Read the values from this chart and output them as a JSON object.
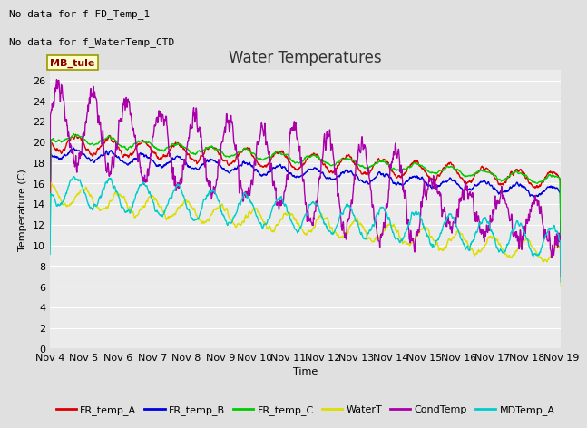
{
  "title": "Water Temperatures",
  "xlabel": "Time",
  "ylabel": "Temperature (C)",
  "text_lines": [
    "No data for f FD_Temp_1",
    "No data for f_WaterTemp_CTD"
  ],
  "mb_tule_label": "MB_tule",
  "ylim": [
    0,
    27
  ],
  "yticks": [
    0,
    2,
    4,
    6,
    8,
    10,
    12,
    14,
    16,
    18,
    20,
    22,
    24,
    26
  ],
  "x_tick_labels": [
    "Nov 4",
    "Nov 5",
    "Nov 6",
    "Nov 7",
    "Nov 8",
    "Nov 9",
    "Nov 10",
    "Nov 11",
    "Nov 12",
    "Nov 13",
    "Nov 14",
    "Nov 15",
    "Nov 16",
    "Nov 17",
    "Nov 18",
    "Nov 19"
  ],
  "series_colors": {
    "FR_temp_A": "#dd0000",
    "FR_temp_B": "#0000dd",
    "FR_temp_C": "#00cc00",
    "WaterT": "#dddd00",
    "CondTemp": "#aa00aa",
    "MDTemp_A": "#00cccc"
  },
  "legend_entries": [
    "FR_temp_A",
    "FR_temp_B",
    "FR_temp_C",
    "WaterT",
    "CondTemp",
    "MDTemp_A"
  ],
  "background_color": "#e0e0e0",
  "plot_bg_color": "#ebebeb",
  "grid_color": "#ffffff",
  "title_fontsize": 12,
  "axis_fontsize": 8,
  "legend_fontsize": 8,
  "figsize": [
    6.4,
    4.8
  ],
  "dpi": 100
}
